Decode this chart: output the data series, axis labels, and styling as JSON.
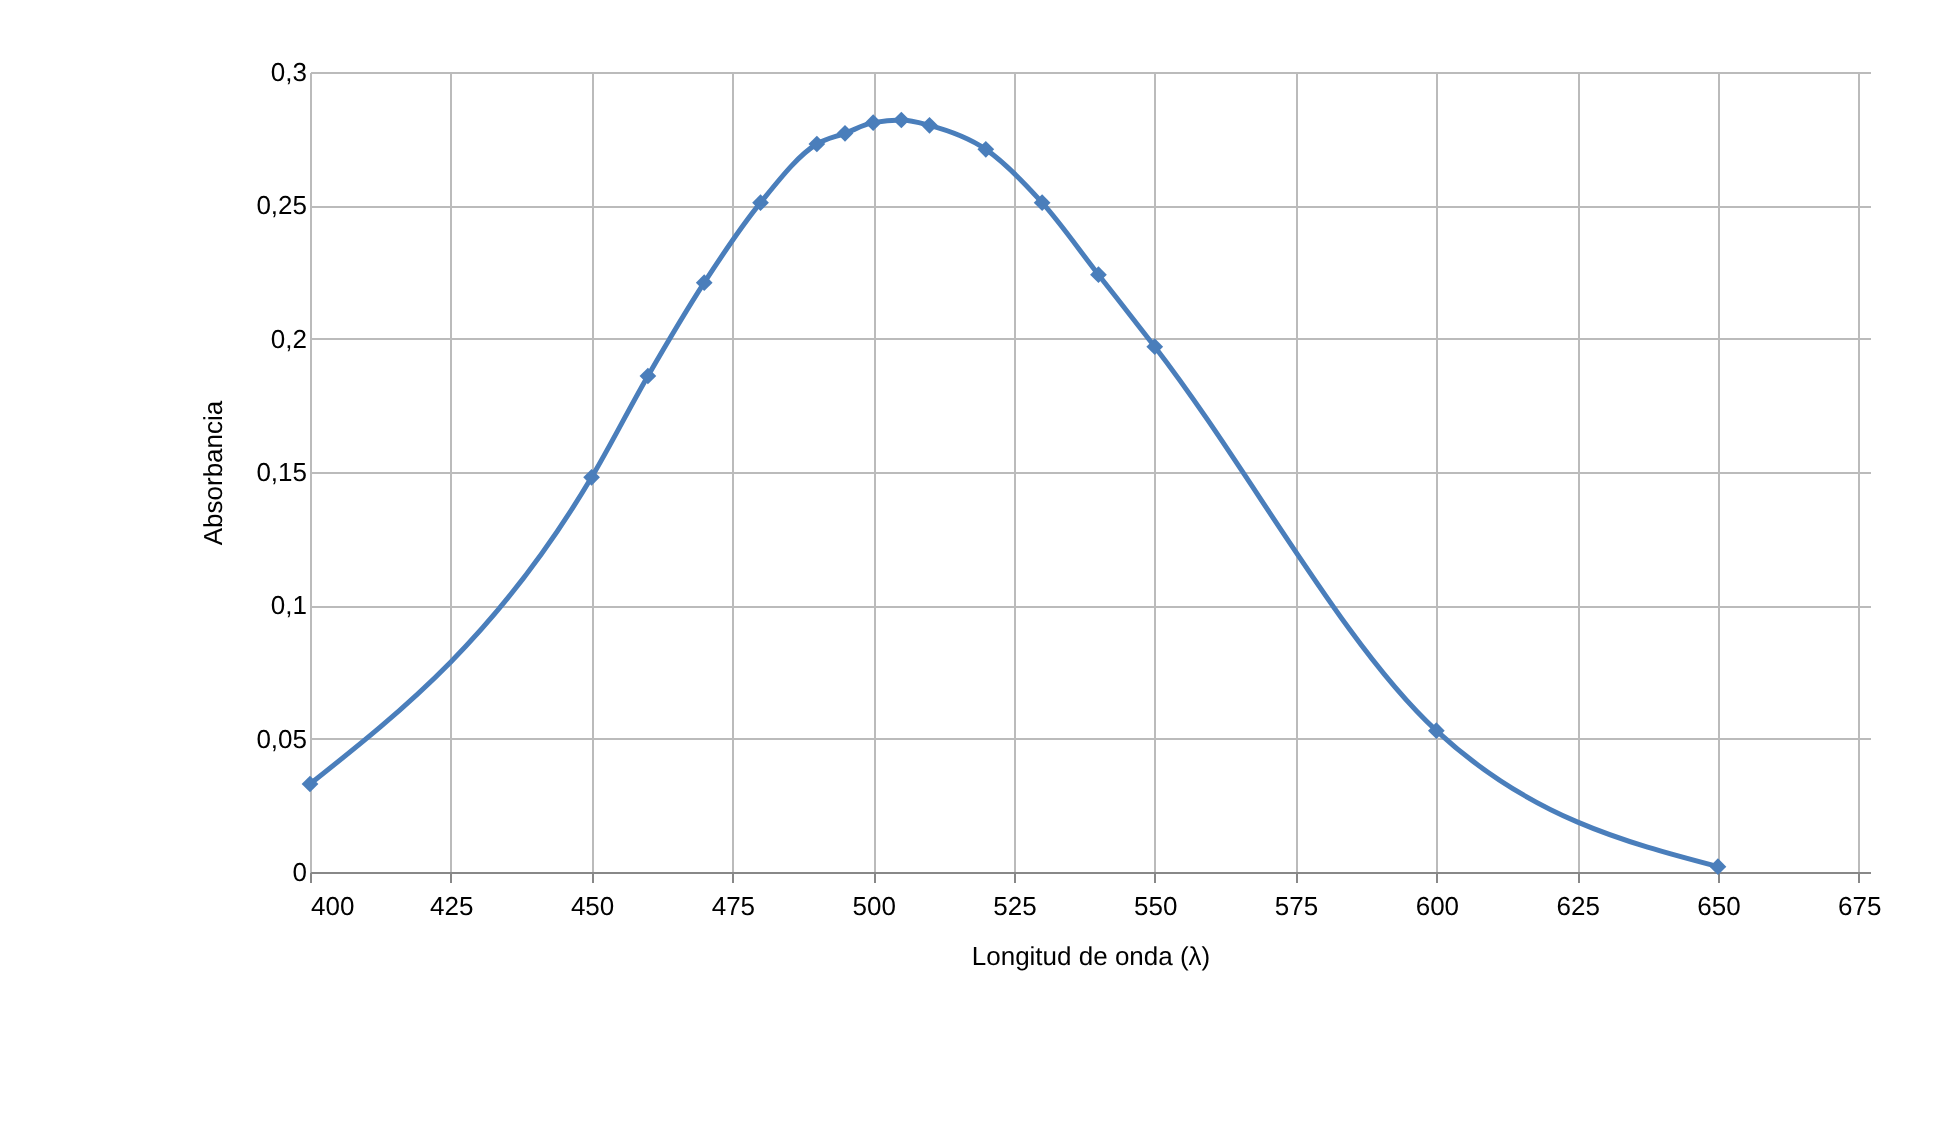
{
  "chart_data": {
    "type": "line",
    "xlabel": "Longitud de onda (λ)",
    "ylabel": "Absorbancia",
    "series": [
      {
        "color": "#4a7ebb",
        "x": [
          400,
          450,
          460,
          470,
          480,
          490,
          495,
          500,
          505,
          510,
          520,
          530,
          540,
          550,
          600,
          650
        ],
        "values": [
          0.033,
          0.148,
          0.186,
          0.221,
          0.251,
          0.273,
          0.277,
          0.281,
          0.282,
          0.28,
          0.271,
          0.251,
          0.224,
          0.197,
          0.053,
          0.002
        ]
      }
    ],
    "xlim": [
      400,
      677
    ],
    "xticks": [
      400,
      425,
      450,
      475,
      500,
      525,
      550,
      575,
      600,
      625,
      650,
      675
    ],
    "ylim": [
      0,
      0.3
    ],
    "yticks": [
      {
        "value": 0,
        "label": "0"
      },
      {
        "value": 0.05,
        "label": "0,05"
      },
      {
        "value": 0.1,
        "label": "0,1"
      },
      {
        "value": 0.15,
        "label": "0,15"
      },
      {
        "value": 0.2,
        "label": "0,2"
      },
      {
        "value": 0.25,
        "label": "0,25"
      },
      {
        "value": 0.3,
        "label": "0,3"
      }
    ],
    "grid": true,
    "marker": "diamond"
  }
}
